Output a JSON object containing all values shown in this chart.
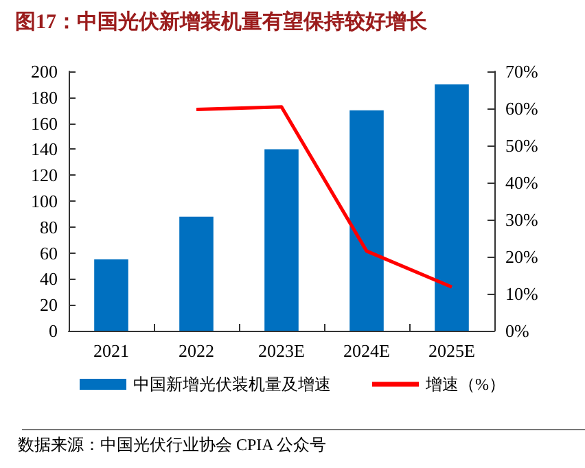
{
  "chart_data": {
    "type": "bar",
    "title": "图17：中国光伏新增装机量有望保持较好增长",
    "categories": [
      "2021",
      "2022",
      "2023E",
      "2024E",
      "2025E"
    ],
    "series": [
      {
        "name": "中国新增光伏装机量及增速",
        "color": "#0070c0",
        "values": [
          55,
          88,
          140,
          170,
          190
        ]
      },
      {
        "name": "增速（%）",
        "type": "line",
        "axis": "y2",
        "color": "#ff0000",
        "marker": "none",
        "values": [
          null,
          59.7,
          60.4,
          21.5,
          11.8
        ]
      }
    ],
    "ylim": [
      0,
      200
    ],
    "yticks": [
      0,
      20,
      40,
      60,
      80,
      100,
      120,
      140,
      160,
      180,
      200
    ],
    "y2lim": [
      0,
      70
    ],
    "y2ticks": [
      {
        "value": 0,
        "label": "0%"
      },
      {
        "value": 10,
        "label": "10%"
      },
      {
        "value": 20,
        "label": "20%"
      },
      {
        "value": 30,
        "label": "30%"
      },
      {
        "value": 40,
        "label": "40%"
      },
      {
        "value": 50,
        "label": "50%"
      },
      {
        "value": 60,
        "label": "60%"
      },
      {
        "value": 70,
        "label": "70%"
      }
    ],
    "grid": false,
    "legend": "bottom",
    "annotations": [
      "数据来源：中国光伏行业协会 CPIA 公众号"
    ]
  }
}
